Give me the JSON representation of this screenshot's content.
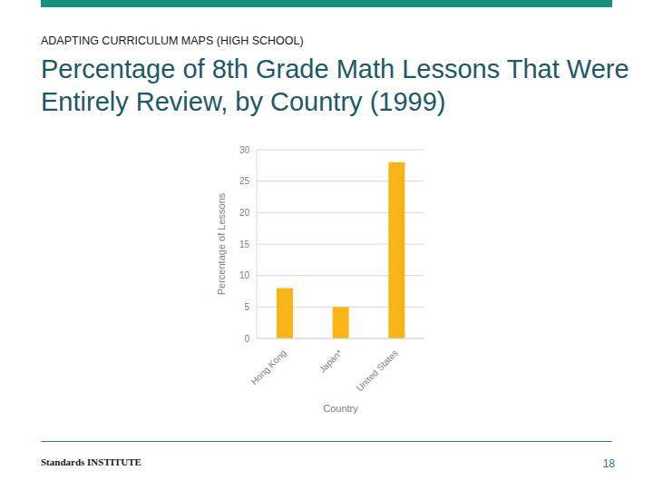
{
  "slide": {
    "section": "ADAPTING CURRICULUM MAPS (HIGH SCHOOL)",
    "footer": "Standards INSTITUTE",
    "page": 18
  },
  "chart_data": {
    "type": "bar",
    "title": "Percentage of 8th Grade Math Lessons That Were Entirely Review, by Country (1999)",
    "x_label": "Country",
    "y_label": "Percentage of Lessons",
    "categories": [
      "Hong Kong",
      "Japan*",
      "United States"
    ],
    "values": [
      8,
      5,
      28
    ],
    "color": "#fbb418",
    "ylim": [
      0,
      30
    ],
    "yticks": [
      0,
      5,
      10,
      15,
      20,
      25,
      30
    ],
    "grid": true
  }
}
